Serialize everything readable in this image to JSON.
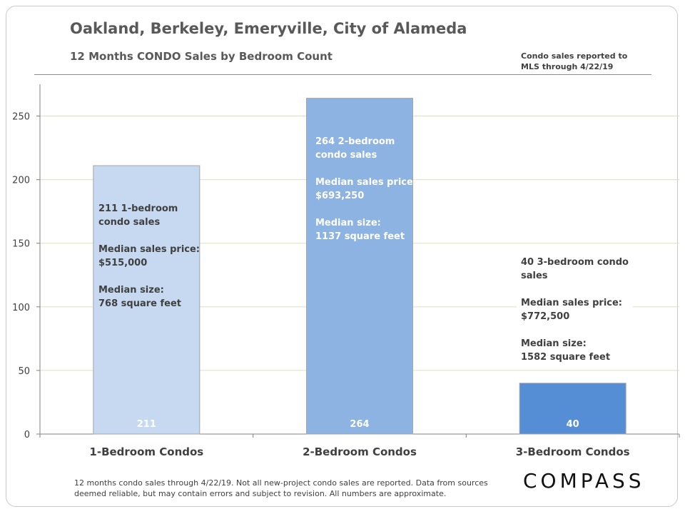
{
  "header": {
    "title": "Oakland, Berkeley, Emeryville, City of Alameda",
    "subtitle": "12 Months  CONDO  Sales by Bedroom  Count",
    "note_line1": "Condo sales reported to",
    "note_line2": "MLS through 4/22/19"
  },
  "annotations": [
    {
      "line1": "211 1-bedroom",
      "line2": "condo sales",
      "price_label": "Median sales price:",
      "price": "$515,000",
      "size_label": "Median size:",
      "size": "768 square feet"
    },
    {
      "line1": "264 2-bedroom",
      "line2": "condo sales",
      "price_label": "Median sales price:",
      "price": "$693,250",
      "size_label": "Median size:",
      "size": "1137 square feet"
    },
    {
      "line1": "40 3-bedroom condo",
      "line2": "sales",
      "price_label": "Median sales price:",
      "price": "$772,500",
      "size_label": "Median size:",
      "size": "1582 square feet"
    }
  ],
  "footer": {
    "line1": "12 months condo sales through 4/22/19. Not all new-project condo sales are reported. Data from sources",
    "line2": "deemed reliable, but may contain errors and subject to revision. All numbers are approximate."
  },
  "brand": {
    "logo_text": "COMPASS"
  },
  "chart_data": {
    "type": "bar",
    "categories": [
      "1-Bedroom Condos",
      "2-Bedroom Condos",
      "3-Bedroom Condos"
    ],
    "values": [
      211,
      264,
      40
    ],
    "data_labels": [
      "211",
      "264",
      "40"
    ],
    "bar_colors": [
      "#c6d9f1",
      "#8db3e2",
      "#558ed5"
    ],
    "yticks": [
      0,
      50,
      100,
      150,
      200,
      250
    ],
    "ylim": [
      0,
      275
    ],
    "grid": true,
    "gridline_color": "#d9e0c4",
    "xlabel": "",
    "ylabel": ""
  }
}
